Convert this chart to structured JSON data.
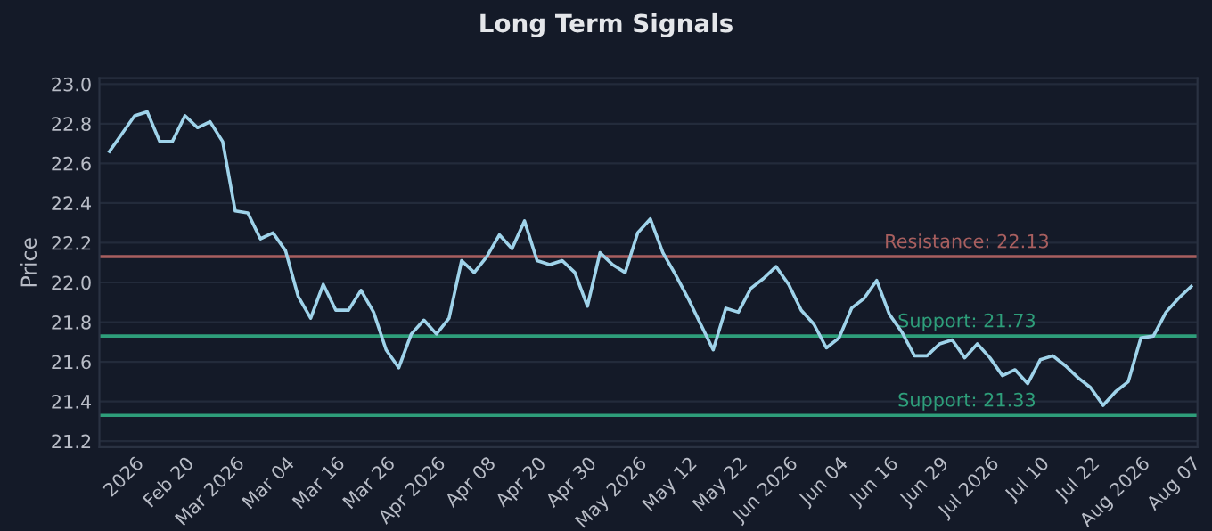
{
  "chart_data": {
    "type": "line",
    "title": "Long Term Signals",
    "ylabel": "Price",
    "categories": [
      null,
      null,
      "2026",
      null,
      null,
      null,
      "Feb 20",
      null,
      null,
      null,
      "Mar 2026",
      null,
      null,
      null,
      "Mar 04",
      null,
      null,
      null,
      "Mar 16",
      null,
      null,
      null,
      "Mar 26",
      null,
      null,
      null,
      "Apr 2026",
      null,
      null,
      null,
      "Apr 08",
      null,
      null,
      null,
      "Apr 20",
      null,
      null,
      null,
      "Apr 30",
      null,
      null,
      null,
      "May 2026",
      null,
      null,
      null,
      "May 12",
      null,
      null,
      null,
      "May 22",
      null,
      null,
      null,
      "Jun 2026",
      null,
      null,
      null,
      "Jun 04",
      null,
      null,
      null,
      "Jun 16",
      null,
      null,
      null,
      "Jun 29",
      null,
      null,
      null,
      "Jul 2026",
      null,
      null,
      null,
      "Jul 10",
      null,
      null,
      null,
      "Jul 22",
      null,
      null,
      null,
      "Aug 2026",
      null,
      null,
      null,
      "Aug 07"
    ],
    "series": [
      {
        "color": "#9fd3ea",
        "values": [
          22.66,
          22.75,
          22.84,
          22.86,
          22.71,
          22.71,
          22.84,
          22.78,
          22.81,
          22.71,
          22.36,
          22.35,
          22.22,
          22.25,
          22.16,
          21.93,
          21.82,
          21.99,
          21.86,
          21.86,
          21.96,
          21.85,
          21.66,
          21.57,
          21.74,
          21.81,
          21.74,
          21.82,
          22.11,
          22.05,
          22.13,
          22.24,
          22.17,
          22.31,
          22.11,
          22.09,
          22.11,
          22.05,
          21.88,
          22.15,
          22.09,
          22.05,
          22.25,
          22.32,
          22.15,
          22.04,
          21.92,
          21.79,
          21.66,
          21.87,
          21.85,
          21.97,
          22.02,
          22.08,
          21.99,
          21.86,
          21.79,
          21.67,
          21.72,
          21.87,
          21.92,
          22.01,
          21.84,
          21.75,
          21.63,
          21.63,
          21.69,
          21.71,
          21.62,
          21.69,
          21.62,
          21.53,
          21.56,
          21.49,
          21.61,
          21.63,
          21.58,
          21.52,
          21.47,
          21.38,
          21.45,
          21.5,
          21.72,
          21.73,
          21.85,
          21.92,
          21.98
        ]
      }
    ],
    "ylim": [
      21.17,
      23.03
    ],
    "yticks": [
      21.2,
      21.4,
      21.6,
      21.8,
      {
        "value": 22,
        "label": "22.0"
      },
      22.2,
      22.4,
      22.6,
      22.8,
      {
        "value": 23,
        "label": "23.0"
      }
    ],
    "ref_lines": [
      {
        "axis": "y",
        "value": 22.13,
        "label": "Resistance: 22.13",
        "color": "#a85f5f"
      },
      {
        "axis": "y",
        "value": 21.73,
        "label": "Support: 21.73",
        "color": "#2e9e7a"
      },
      {
        "axis": "y",
        "value": 21.33,
        "label": "Support: 21.33",
        "color": "#2e9e7a"
      }
    ],
    "grid": "y",
    "legend": false,
    "marker": "none",
    "line_style": "solid"
  }
}
